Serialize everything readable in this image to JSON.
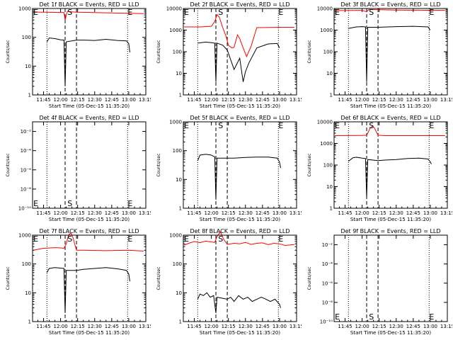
{
  "page": {
    "x_ticks": [
      "11:45",
      "12:00",
      "12:15",
      "12:30",
      "12:45",
      "13:00",
      "13:15"
    ],
    "xlabel": "Start Time (05-Dec-15 11:35:20)",
    "ylabel": "Counts/sec",
    "s_marker": "S",
    "e_marker": "E"
  },
  "colors": {
    "events": "#000000",
    "lld": "#ff0000",
    "axis": "#000000"
  },
  "chart_data": [
    {
      "type": "line",
      "title": "Det 1f BLACK = Events, RED = LLD",
      "yscale": "log",
      "ylim": [
        1,
        1000
      ],
      "y_ticks": [
        {
          "v": 1,
          "t": "1"
        },
        {
          "v": 10,
          "t": "10"
        },
        {
          "v": 100,
          "t": "100"
        },
        {
          "v": 1000,
          "t": "1000"
        }
      ],
      "xlim": [
        "11:35:20",
        "13:15:00"
      ],
      "markers": {
        "dotted": [
          "11:48",
          "12:59"
        ],
        "dashed": [
          "12:04",
          "12:14"
        ]
      },
      "labels": {
        "E1": "11:36",
        "S": "12:06",
        "E2": "12:59"
      },
      "series": [
        {
          "role": "lld",
          "x": [
            "11:36",
            "11:48",
            "12:03",
            "12:04",
            "12:06",
            "12:08",
            "12:10",
            "12:14",
            "12:30",
            "12:45",
            "13:00",
            "13:13"
          ],
          "y": [
            750,
            740,
            720,
            400,
            800,
            780,
            760,
            740,
            720,
            700,
            680,
            660
          ]
        },
        {
          "role": "events",
          "x": [
            "11:48",
            "11:50",
            "11:55",
            "12:00",
            "12:03",
            "12:04",
            "12:05",
            "12:14",
            "12:20",
            "12:30",
            "12:40",
            "12:50",
            "12:58",
            "13:00",
            "13:01"
          ],
          "y": [
            70,
            95,
            90,
            82,
            80,
            2,
            70,
            80,
            80,
            78,
            85,
            78,
            75,
            60,
            30
          ]
        }
      ]
    },
    {
      "type": "line",
      "title": "Det 2f BLACK = Events, RED = LLD",
      "yscale": "log",
      "ylim": [
        1,
        10000
      ],
      "y_ticks": [
        {
          "v": 1,
          "t": "1"
        },
        {
          "v": 10,
          "t": "10"
        },
        {
          "v": 100,
          "t": "100"
        },
        {
          "v": 1000,
          "t": "1000"
        },
        {
          "v": 10000,
          "t": "10000"
        }
      ],
      "xlim": [
        "11:35:20",
        "13:15:00"
      ],
      "markers": {
        "dotted": [
          "11:48",
          "12:59"
        ],
        "dashed": [
          "12:04",
          "12:14"
        ]
      },
      "labels": {
        "E1": "11:36",
        "S": "12:06",
        "E2": "12:59"
      },
      "series": [
        {
          "role": "lld",
          "x": [
            "11:36",
            "11:50",
            "12:00",
            "12:03",
            "12:05",
            "12:07",
            "12:10",
            "12:13",
            "12:15",
            "12:18",
            "12:20",
            "12:23",
            "12:25",
            "12:28",
            "12:31",
            "12:35",
            "12:40",
            "13:00",
            "13:13"
          ],
          "y": [
            1400,
            1400,
            1500,
            2500,
            5200,
            4000,
            1300,
            500,
            200,
            150,
            160,
            600,
            400,
            150,
            60,
            180,
            1300,
            1350,
            1350
          ]
        },
        {
          "role": "events",
          "x": [
            "11:48",
            "11:55",
            "12:00",
            "12:03",
            "12:04",
            "12:05",
            "12:10",
            "12:14",
            "12:20",
            "12:25",
            "12:28",
            "12:30",
            "12:33",
            "12:40",
            "12:50",
            "12:58",
            "13:00"
          ],
          "y": [
            250,
            280,
            260,
            250,
            4,
            250,
            200,
            120,
            15,
            50,
            4,
            12,
            30,
            150,
            230,
            240,
            150
          ]
        }
      ]
    },
    {
      "type": "line",
      "title": "Det 3f BLACK = Events, RED = LLD",
      "yscale": "log",
      "ylim": [
        1,
        10000
      ],
      "y_ticks": [
        {
          "v": 1,
          "t": "1"
        },
        {
          "v": 10,
          "t": "10"
        },
        {
          "v": 100,
          "t": "100"
        },
        {
          "v": 1000,
          "t": "1000"
        },
        {
          "v": 10000,
          "t": "10000"
        }
      ],
      "xlim": [
        "11:35:20",
        "13:15:00"
      ],
      "markers": {
        "dotted": [
          "11:48",
          "12:59"
        ],
        "dashed": [
          "12:04",
          "12:14"
        ]
      },
      "labels": {
        "E1": "11:36",
        "S": "12:06",
        "E2": "12:59"
      },
      "series": [
        {
          "role": "lld",
          "x": [
            "11:36",
            "12:00",
            "12:04",
            "12:06",
            "12:30",
            "13:00",
            "13:13"
          ],
          "y": [
            8000,
            8200,
            7000,
            9000,
            8500,
            8300,
            8200
          ]
        },
        {
          "role": "events",
          "x": [
            "11:48",
            "11:55",
            "12:00",
            "12:03",
            "12:04",
            "12:05",
            "12:14",
            "12:30",
            "12:45",
            "12:58",
            "13:00"
          ],
          "y": [
            1200,
            1400,
            1450,
            1400,
            4,
            1350,
            1350,
            1450,
            1500,
            1400,
            1000
          ]
        }
      ]
    },
    {
      "type": "line",
      "title": "Det 4f BLACK = Events, RED = LLD",
      "yscale": "log",
      "ylim": [
        1e-10,
        0.1
      ],
      "y_ticks": [
        {
          "v": 1e-10,
          "t": "10⁻¹⁰"
        },
        {
          "v": 1e-08,
          "t": "10⁻⁸"
        },
        {
          "v": 1e-06,
          "t": "10⁻⁶"
        },
        {
          "v": 0.0001,
          "t": "10⁻⁴"
        },
        {
          "v": 0.01,
          "t": "10⁻²"
        }
      ],
      "xlim": [
        "11:35:20",
        "13:15:00"
      ],
      "markers": {
        "dotted": [
          "11:48",
          "12:59"
        ],
        "dashed": [
          "12:04",
          "12:14"
        ]
      },
      "labels": {
        "E1": "11:36",
        "S": "12:06",
        "E2": "12:59"
      },
      "labels_bottom": true,
      "series": []
    },
    {
      "type": "line",
      "title": "Det 5f BLACK = Events, RED = LLD",
      "yscale": "log",
      "ylim": [
        1,
        1000
      ],
      "y_ticks": [
        {
          "v": 1,
          "t": "1"
        },
        {
          "v": 10,
          "t": "10"
        },
        {
          "v": 100,
          "t": "100"
        },
        {
          "v": 1000,
          "t": "1000"
        }
      ],
      "xlim": [
        "11:35:20",
        "13:15:00"
      ],
      "markers": {
        "dotted": [
          "11:48",
          "12:59"
        ],
        "dashed": [
          "12:04",
          "12:14"
        ]
      },
      "labels": {
        "E1": "11:36",
        "S": "12:06",
        "E2": "12:59"
      },
      "series": [
        {
          "role": "events",
          "x": [
            "11:48",
            "11:50",
            "11:55",
            "12:00",
            "12:03",
            "12:04",
            "12:05",
            "12:14",
            "12:20",
            "12:30",
            "12:40",
            "12:50",
            "12:58",
            "13:00",
            "13:01"
          ],
          "y": [
            45,
            70,
            75,
            70,
            60,
            2,
            55,
            55,
            55,
            58,
            60,
            60,
            55,
            40,
            25
          ]
        }
      ]
    },
    {
      "type": "line",
      "title": "Det 6f BLACK = Events, RED = LLD",
      "yscale": "log",
      "ylim": [
        1,
        10000
      ],
      "y_ticks": [
        {
          "v": 1,
          "t": "1"
        },
        {
          "v": 10,
          "t": "10"
        },
        {
          "v": 100,
          "t": "100"
        },
        {
          "v": 1000,
          "t": "1000"
        },
        {
          "v": 10000,
          "t": "10000"
        }
      ],
      "xlim": [
        "11:35:20",
        "13:15:00"
      ],
      "markers": {
        "dotted": [
          "11:48",
          "12:59"
        ],
        "dashed": [
          "12:04",
          "12:14"
        ]
      },
      "labels": {
        "E1": "11:36",
        "S": "12:06",
        "E2": "12:59"
      },
      "series": [
        {
          "role": "lld",
          "x": [
            "11:36",
            "12:00",
            "12:04",
            "12:05",
            "12:07",
            "12:09",
            "12:11",
            "12:13",
            "12:14",
            "12:20",
            "12:40",
            "13:00",
            "13:13"
          ],
          "y": [
            2300,
            2350,
            2400,
            3000,
            5000,
            6500,
            5000,
            3000,
            2400,
            2300,
            2300,
            2300,
            2300
          ]
        },
        {
          "role": "events",
          "x": [
            "11:48",
            "11:52",
            "11:55",
            "12:00",
            "12:03",
            "12:04",
            "12:05",
            "12:14",
            "12:20",
            "12:30",
            "12:40",
            "12:50",
            "12:58",
            "13:00",
            "13:01"
          ],
          "y": [
            150,
            220,
            230,
            210,
            200,
            3,
            180,
            160,
            170,
            180,
            200,
            210,
            190,
            140,
            110
          ]
        }
      ]
    },
    {
      "type": "line",
      "title": "Det 7f BLACK = Events, RED = LLD",
      "yscale": "log",
      "ylim": [
        1,
        1000
      ],
      "y_ticks": [
        {
          "v": 1,
          "t": "1"
        },
        {
          "v": 10,
          "t": "10"
        },
        {
          "v": 100,
          "t": "100"
        },
        {
          "v": 1000,
          "t": "1000"
        }
      ],
      "xlim": [
        "11:35:20",
        "13:15:00"
      ],
      "markers": {
        "dotted": [
          "11:48",
          "12:59"
        ],
        "dashed": [
          "12:04",
          "12:14"
        ]
      },
      "labels": {
        "E1": "11:36",
        "S": "12:06",
        "E2": "12:59"
      },
      "series": [
        {
          "role": "lld",
          "x": [
            "11:36",
            "11:45",
            "11:55",
            "12:00",
            "12:03",
            "12:05",
            "12:07",
            "12:09",
            "12:11",
            "12:13",
            "12:14",
            "12:20",
            "12:40",
            "13:00",
            "13:13"
          ],
          "y": [
            300,
            350,
            370,
            360,
            350,
            500,
            1000,
            1200,
            800,
            400,
            300,
            300,
            290,
            300,
            280
          ]
        },
        {
          "role": "events",
          "x": [
            "11:48",
            "11:50",
            "11:55",
            "12:00",
            "12:03",
            "12:04",
            "12:05",
            "12:14",
            "12:20",
            "12:30",
            "12:40",
            "12:50",
            "12:58",
            "13:00",
            "13:01"
          ],
          "y": [
            50,
            70,
            75,
            72,
            70,
            2,
            60,
            60,
            65,
            70,
            75,
            68,
            60,
            45,
            25
          ]
        }
      ]
    },
    {
      "type": "line",
      "title": "Det 8f BLACK = Events, RED = LLD",
      "yscale": "log",
      "ylim": [
        1,
        1000
      ],
      "y_ticks": [
        {
          "v": 1,
          "t": "1"
        },
        {
          "v": 10,
          "t": "10"
        },
        {
          "v": 100,
          "t": "100"
        },
        {
          "v": 1000,
          "t": "1000"
        }
      ],
      "xlim": [
        "11:35:20",
        "13:15:00"
      ],
      "markers": {
        "dotted": [
          "11:48",
          "12:59"
        ],
        "dashed": [
          "12:04",
          "12:14"
        ]
      },
      "labels": {
        "E1": "11:36",
        "S": "12:06",
        "E2": "12:59"
      },
      "series": [
        {
          "role": "lld",
          "x": [
            "11:36",
            "11:40",
            "11:45",
            "11:50",
            "11:55",
            "12:00",
            "12:03",
            "12:05",
            "12:08",
            "12:11",
            "12:14",
            "12:20",
            "12:25",
            "12:30",
            "12:35",
            "12:40",
            "12:45",
            "12:50",
            "12:55",
            "13:00",
            "13:05",
            "13:13"
          ],
          "y": [
            450,
            520,
            600,
            550,
            620,
            580,
            560,
            900,
            1300,
            700,
            480,
            520,
            500,
            560,
            480,
            520,
            540,
            470,
            520,
            500,
            440,
            470
          ]
        },
        {
          "role": "events",
          "x": [
            "11:48",
            "11:50",
            "11:53",
            "11:56",
            "11:59",
            "12:02",
            "12:04",
            "12:05",
            "12:14",
            "12:17",
            "12:20",
            "12:24",
            "12:28",
            "12:32",
            "12:36",
            "12:40",
            "12:44",
            "12:48",
            "12:52",
            "12:56",
            "13:00",
            "13:01"
          ],
          "y": [
            6,
            9,
            8,
            10,
            7,
            8,
            2,
            7,
            6,
            7,
            5,
            8,
            6,
            7,
            5,
            6,
            7,
            6,
            5,
            6,
            4,
            3
          ]
        }
      ]
    },
    {
      "type": "line",
      "title": "Det 9f BLACK = Events, RED = LLD",
      "yscale": "log",
      "ylim": [
        1e-10,
        0.1
      ],
      "y_ticks": [
        {
          "v": 1e-10,
          "t": "10⁻¹⁰"
        },
        {
          "v": 1e-08,
          "t": "10⁻⁸"
        },
        {
          "v": 1e-06,
          "t": "10⁻⁶"
        },
        {
          "v": 0.0001,
          "t": "10⁻⁴"
        },
        {
          "v": 0.01,
          "t": "10⁻²"
        }
      ],
      "xlim": [
        "11:35:20",
        "13:15:00"
      ],
      "markers": {
        "dotted": [
          "11:48",
          "12:59"
        ],
        "dashed": [
          "12:04",
          "12:14"
        ]
      },
      "labels": {
        "E1": "11:36",
        "S": "12:06",
        "E2": "12:59"
      },
      "labels_bottom": true,
      "series": []
    }
  ]
}
